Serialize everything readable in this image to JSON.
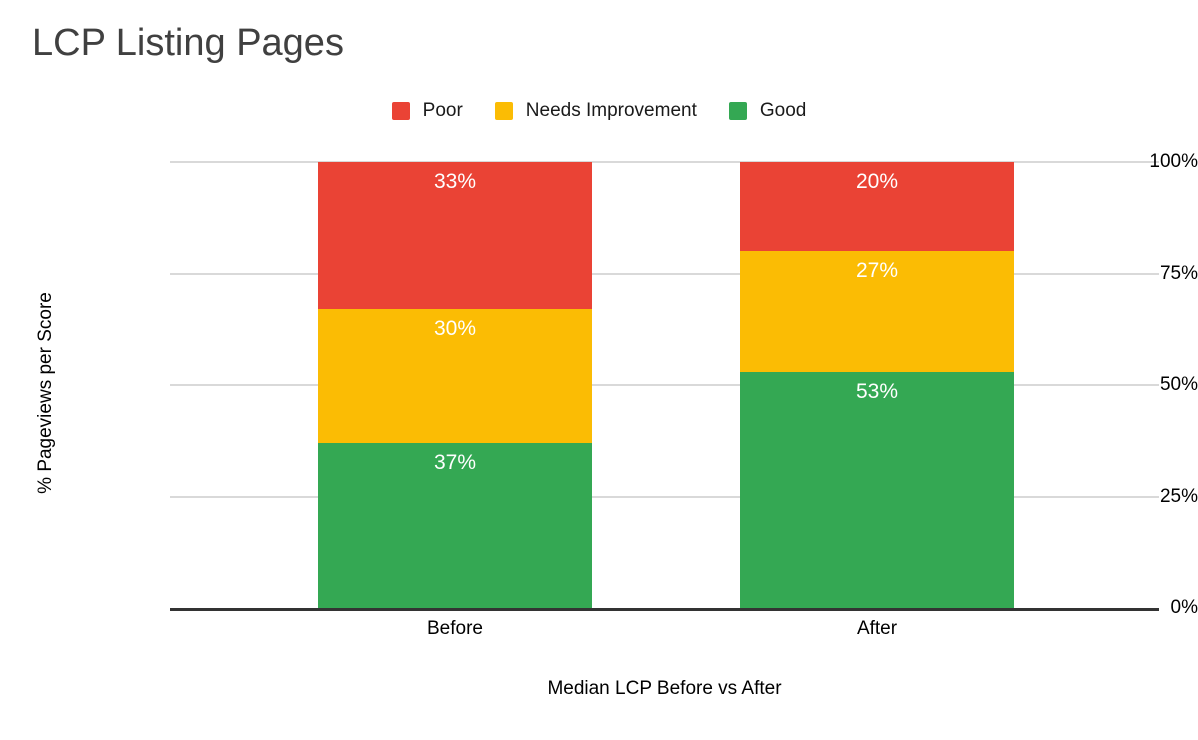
{
  "chart_data": {
    "type": "bar",
    "stacked": true,
    "stacked_mode": "percent",
    "title": "LCP Listing Pages",
    "xlabel": "Median LCP Before vs After",
    "ylabel": "% Pageviews per Score",
    "categories": [
      "Before",
      "After"
    ],
    "series": [
      {
        "name": "Good",
        "color": "#34A853",
        "values": [
          37,
          53
        ],
        "labels": [
          "37%",
          "53%"
        ]
      },
      {
        "name": "Needs Improvement",
        "color": "#FBBC04",
        "values": [
          30,
          27
        ],
        "labels": [
          "30%",
          "27%"
        ]
      },
      {
        "name": "Poor",
        "color": "#EA4335",
        "values": [
          33,
          20
        ],
        "labels": [
          "33%",
          "20%"
        ]
      }
    ],
    "stack_order_bottom_to_top": [
      "Good",
      "Needs Improvement",
      "Poor"
    ],
    "legend": {
      "position": "top",
      "entries": [
        "Poor",
        "Needs Improvement",
        "Good"
      ]
    },
    "y_ticks": [
      "0%",
      "25%",
      "50%",
      "75%",
      "100%"
    ],
    "ylim": [
      0,
      100
    ],
    "grid": true,
    "colors": {
      "gridline": "#d9d9d9",
      "axis_line": "#333333",
      "title_text": "#404040",
      "axis_text": "#000000",
      "data_label_text": "#ffffff",
      "background": "#ffffff"
    }
  }
}
